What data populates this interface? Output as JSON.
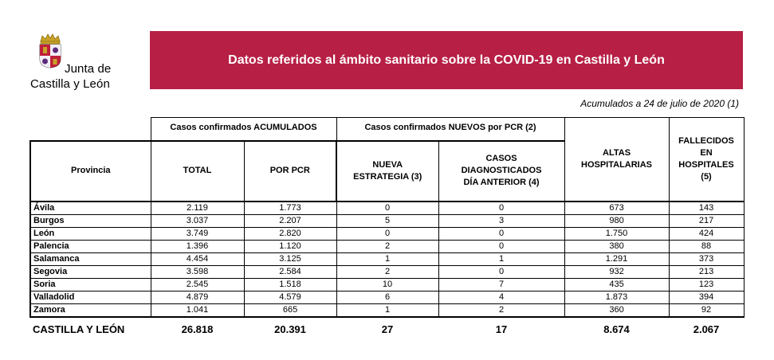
{
  "logo": {
    "line1": "Junta de",
    "line2": "Castilla y León",
    "icon": "coat-of-arms-icon",
    "colors": {
      "red": "#b71f45",
      "purple": "#5b2a7a",
      "gold": "#c9a227"
    }
  },
  "banner": {
    "title": "Datos referidos al ámbito sanitario sobre la COVID-19 en Castilla y León",
    "color": "#b71f45"
  },
  "date_note": "Acumulados a 24 de julio de 2020 (1)",
  "table": {
    "group_headers": {
      "acumulados": "Casos confirmados ACUMULADOS",
      "nuevos": "Casos confirmados NUEVOS por PCR (2)"
    },
    "columns": {
      "provincia": "Provincia",
      "total": "TOTAL",
      "por_pcr": "POR PCR",
      "nueva_1": "NUEVA",
      "nueva_2": "ESTRATEGIA (3)",
      "casos_1": "CASOS",
      "casos_2": "DIAGNOSTICADOS",
      "casos_3": "DÍA ANTERIOR (4)",
      "altas_1": "ALTAS",
      "altas_2": "HOSPITALARIAS",
      "fall_1": "FALLECIDOS",
      "fall_2": "EN",
      "fall_3": "HOSPITALES",
      "fall_4": "(5)"
    },
    "rows": [
      {
        "provincia": "Ávila",
        "total": "2.119",
        "por_pcr": "1.773",
        "nueva": "0",
        "dia_anterior": "0",
        "altas": "673",
        "fallecidos": "143"
      },
      {
        "provincia": "Burgos",
        "total": "3.037",
        "por_pcr": "2.207",
        "nueva": "5",
        "dia_anterior": "3",
        "altas": "980",
        "fallecidos": "217"
      },
      {
        "provincia": "León",
        "total": "3.749",
        "por_pcr": "2.820",
        "nueva": "0",
        "dia_anterior": "0",
        "altas": "1.750",
        "fallecidos": "424"
      },
      {
        "provincia": "Palencia",
        "total": "1.396",
        "por_pcr": "1.120",
        "nueva": "2",
        "dia_anterior": "0",
        "altas": "380",
        "fallecidos": "88"
      },
      {
        "provincia": "Salamanca",
        "total": "4.454",
        "por_pcr": "3.125",
        "nueva": "1",
        "dia_anterior": "1",
        "altas": "1.291",
        "fallecidos": "373"
      },
      {
        "provincia": "Segovia",
        "total": "3.598",
        "por_pcr": "2.584",
        "nueva": "2",
        "dia_anterior": "0",
        "altas": "932",
        "fallecidos": "213"
      },
      {
        "provincia": "Soria",
        "total": "2.545",
        "por_pcr": "1.518",
        "nueva": "10",
        "dia_anterior": "7",
        "altas": "435",
        "fallecidos": "123"
      },
      {
        "provincia": "Valladolid",
        "total": "4.879",
        "por_pcr": "4.579",
        "nueva": "6",
        "dia_anterior": "4",
        "altas": "1.873",
        "fallecidos": "394"
      },
      {
        "provincia": "Zamora",
        "total": "1.041",
        "por_pcr": "665",
        "nueva": "1",
        "dia_anterior": "2",
        "altas": "360",
        "fallecidos": "92"
      }
    ],
    "total_row": {
      "provincia": "CASTILLA Y LEÓN",
      "total": "26.818",
      "por_pcr": "20.391",
      "nueva": "27",
      "dia_anterior": "17",
      "altas": "8.674",
      "fallecidos": "2.067"
    }
  }
}
